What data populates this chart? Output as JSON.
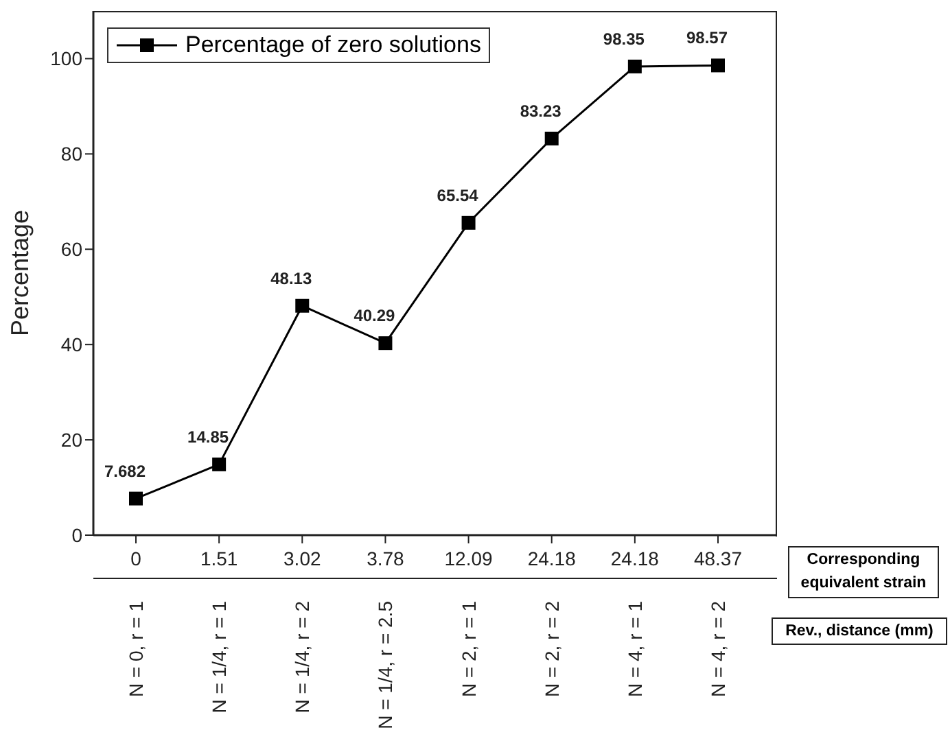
{
  "chart_data": {
    "type": "line",
    "ylabel": "Percentage",
    "categories": [
      "N = 0, r = 1",
      "N = 1/4, r = 1",
      "N = 1/4, r = 2",
      "N = 1/4, r = 2.5",
      "N = 2, r = 1",
      "N = 2, r = 2",
      "N = 4, r = 1",
      "N = 4, r = 2"
    ],
    "series": [
      {
        "name": "Percentage of zero solutions",
        "color": "#000000",
        "values": [
          7.682,
          14.85,
          48.13,
          40.29,
          65.54,
          83.23,
          98.35,
          98.57
        ]
      }
    ],
    "ylim": [
      0,
      110
    ],
    "yticks": [
      0,
      20,
      40,
      60,
      80,
      100
    ],
    "annotations": [
      {
        "text": "0",
        "x": "N = 0, r = 1"
      },
      {
        "text": "1.51",
        "x": "N = 1/4, r = 1"
      },
      {
        "text": "3.02",
        "x": "N = 1/4, r = 2"
      },
      {
        "text": "3.78",
        "x": "N = 1/4, r = 2.5"
      },
      {
        "text": "12.09",
        "x": "N = 2, r = 1"
      },
      {
        "text": "24.18",
        "x": "N = 2, r = 2"
      },
      {
        "text": "24.18",
        "x": "N = 4, r = 1"
      },
      {
        "text": "48.37",
        "x": "N = 4, r = 2"
      },
      "Corresponding equivalent strain",
      "Rev., distance (mm)"
    ],
    "data_labels": true,
    "marker": "square",
    "line_style": "solid",
    "legend": "top left",
    "grid": false
  }
}
